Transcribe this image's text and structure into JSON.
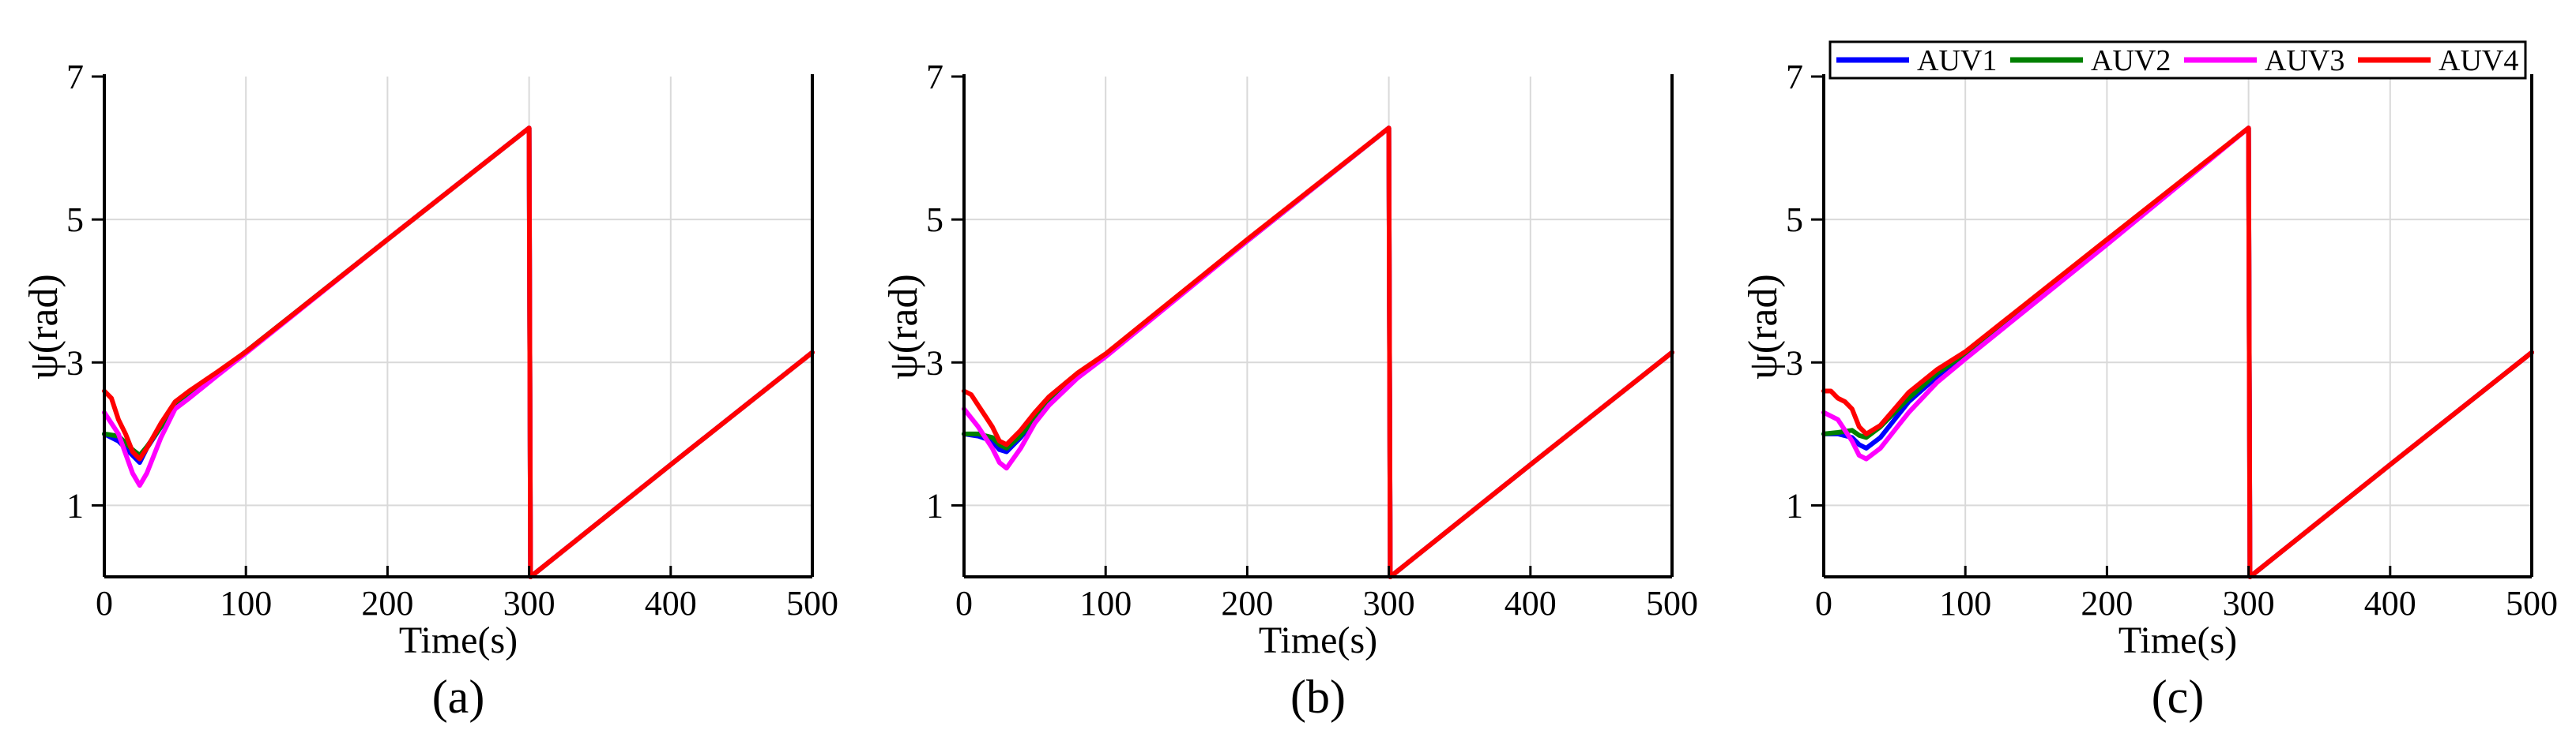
{
  "figure": {
    "panel_captions": [
      "(a)",
      "(b)",
      "(c)"
    ]
  },
  "chart_data": [
    {
      "type": "line",
      "caption": "(a)",
      "xlabel": "Time(s)",
      "ylabel": "ψ(rad)",
      "xlim": [
        0,
        500
      ],
      "ylim": [
        0,
        7
      ],
      "xticks": [
        0,
        100,
        200,
        300,
        400,
        500
      ],
      "yticks": [
        1,
        3,
        5,
        7
      ],
      "grid": true,
      "legend": null,
      "series": [
        {
          "name": "AUV1",
          "color": "#0000ff",
          "x": [
            0,
            10,
            20,
            25,
            30,
            40,
            50,
            60,
            80,
            100,
            200,
            300,
            301,
            400,
            500
          ],
          "y": [
            2.0,
            1.9,
            1.7,
            1.6,
            1.8,
            2.1,
            2.4,
            2.55,
            2.85,
            3.15,
            4.72,
            6.28,
            0.0,
            1.57,
            3.14
          ]
        },
        {
          "name": "AUV2",
          "color": "#008000",
          "x": [
            0,
            10,
            20,
            25,
            30,
            40,
            50,
            60,
            80,
            100,
            200,
            300,
            301,
            400,
            500
          ],
          "y": [
            2.0,
            1.97,
            1.78,
            1.7,
            1.82,
            2.1,
            2.4,
            2.55,
            2.85,
            3.15,
            4.72,
            6.28,
            0.0,
            1.57,
            3.14
          ]
        },
        {
          "name": "AUV3",
          "color": "#ff00ff",
          "x": [
            0,
            10,
            20,
            25,
            30,
            40,
            50,
            60,
            80,
            100,
            200,
            300,
            301,
            400,
            500
          ],
          "y": [
            2.3,
            2.0,
            1.45,
            1.28,
            1.45,
            1.95,
            2.35,
            2.5,
            2.82,
            3.13,
            4.72,
            6.28,
            0.0,
            1.57,
            3.14
          ]
        },
        {
          "name": "AUV4",
          "color": "#ff0000",
          "x": [
            0,
            5,
            10,
            15,
            20,
            25,
            30,
            40,
            50,
            60,
            80,
            100,
            200,
            300,
            301,
            400,
            500
          ],
          "y": [
            2.6,
            2.5,
            2.2,
            2.0,
            1.75,
            1.65,
            1.8,
            2.15,
            2.45,
            2.6,
            2.87,
            3.15,
            4.72,
            6.28,
            0.0,
            1.57,
            3.14
          ]
        }
      ]
    },
    {
      "type": "line",
      "caption": "(b)",
      "xlabel": "Time(s)",
      "ylabel": "ψ(rad)",
      "xlim": [
        0,
        500
      ],
      "ylim": [
        0,
        7
      ],
      "xticks": [
        0,
        100,
        200,
        300,
        400,
        500
      ],
      "yticks": [
        1,
        3,
        5,
        7
      ],
      "grid": true,
      "legend": null,
      "series": [
        {
          "name": "AUV1",
          "color": "#0000ff",
          "x": [
            0,
            10,
            20,
            25,
            30,
            40,
            50,
            60,
            80,
            100,
            200,
            300,
            301,
            400,
            500
          ],
          "y": [
            2.0,
            1.97,
            1.9,
            1.78,
            1.75,
            1.95,
            2.2,
            2.45,
            2.8,
            3.1,
            4.7,
            6.28,
            0.0,
            1.57,
            3.14
          ]
        },
        {
          "name": "AUV2",
          "color": "#008000",
          "x": [
            0,
            10,
            20,
            25,
            30,
            40,
            50,
            60,
            80,
            100,
            200,
            300,
            301,
            400,
            500
          ],
          "y": [
            2.0,
            2.0,
            1.95,
            1.85,
            1.8,
            1.98,
            2.22,
            2.47,
            2.82,
            3.1,
            4.7,
            6.28,
            0.0,
            1.57,
            3.14
          ]
        },
        {
          "name": "AUV3",
          "color": "#ff00ff",
          "x": [
            0,
            10,
            20,
            25,
            30,
            40,
            50,
            60,
            80,
            100,
            200,
            300,
            301,
            400,
            500
          ],
          "y": [
            2.35,
            2.1,
            1.8,
            1.6,
            1.52,
            1.8,
            2.15,
            2.4,
            2.78,
            3.08,
            4.7,
            6.28,
            0.0,
            1.57,
            3.14
          ]
        },
        {
          "name": "AUV4",
          "color": "#ff0000",
          "x": [
            0,
            5,
            10,
            15,
            20,
            25,
            30,
            40,
            50,
            60,
            80,
            100,
            200,
            300,
            301,
            400,
            500
          ],
          "y": [
            2.6,
            2.55,
            2.4,
            2.25,
            2.1,
            1.9,
            1.85,
            2.05,
            2.3,
            2.52,
            2.85,
            3.12,
            4.72,
            6.28,
            0.0,
            1.57,
            3.14
          ]
        }
      ]
    },
    {
      "type": "line",
      "caption": "(c)",
      "xlabel": "Time(s)",
      "ylabel": "ψ(rad)",
      "xlim": [
        0,
        500
      ],
      "ylim": [
        0,
        7
      ],
      "xticks": [
        0,
        100,
        200,
        300,
        400,
        500
      ],
      "yticks": [
        1,
        3,
        5,
        7
      ],
      "grid": true,
      "legend": "top",
      "series": [
        {
          "name": "AUV1",
          "color": "#0000ff",
          "x": [
            0,
            10,
            20,
            25,
            30,
            40,
            50,
            60,
            80,
            100,
            200,
            300,
            301,
            400,
            500
          ],
          "y": [
            2.0,
            2.0,
            1.95,
            1.85,
            1.8,
            1.95,
            2.2,
            2.45,
            2.8,
            3.1,
            4.7,
            6.28,
            0.0,
            1.57,
            3.14
          ]
        },
        {
          "name": "AUV2",
          "color": "#008000",
          "x": [
            0,
            10,
            20,
            25,
            30,
            40,
            50,
            60,
            80,
            100,
            200,
            300,
            301,
            400,
            500
          ],
          "y": [
            2.0,
            2.02,
            2.05,
            1.98,
            1.95,
            2.1,
            2.3,
            2.5,
            2.85,
            3.12,
            4.7,
            6.28,
            0.0,
            1.57,
            3.14
          ]
        },
        {
          "name": "AUV3",
          "color": "#ff00ff",
          "x": [
            0,
            10,
            20,
            25,
            30,
            40,
            50,
            60,
            80,
            100,
            200,
            300,
            301,
            400,
            500
          ],
          "y": [
            2.3,
            2.2,
            1.9,
            1.7,
            1.65,
            1.8,
            2.05,
            2.3,
            2.72,
            3.05,
            4.65,
            6.28,
            0.0,
            1.57,
            3.14
          ]
        },
        {
          "name": "AUV4",
          "color": "#ff0000",
          "x": [
            0,
            5,
            10,
            15,
            20,
            25,
            30,
            40,
            50,
            60,
            80,
            100,
            200,
            300,
            301,
            400,
            500
          ],
          "y": [
            2.6,
            2.6,
            2.5,
            2.45,
            2.35,
            2.1,
            2.0,
            2.12,
            2.35,
            2.58,
            2.9,
            3.15,
            4.72,
            6.28,
            0.0,
            1.57,
            3.14
          ]
        }
      ]
    }
  ]
}
